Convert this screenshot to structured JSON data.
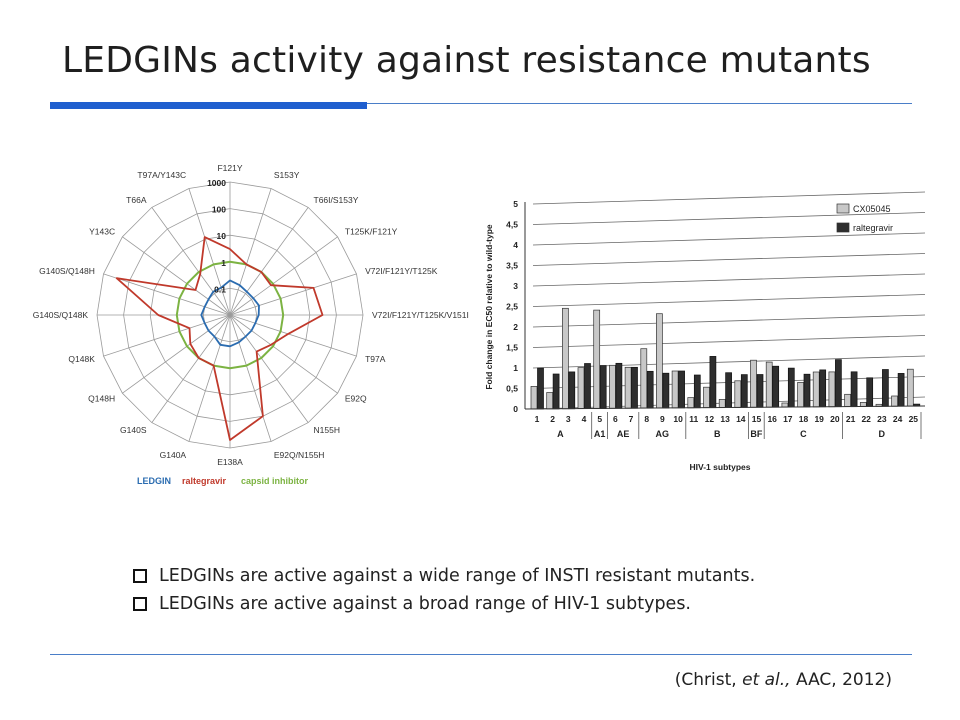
{
  "slide": {
    "title": "LEDGINs activity against resistance mutants",
    "bullets": [
      "LEDGINs are active against a wide range of INSTI resistant mutants.",
      "LEDGINs are active against a broad range of HIV-1 subtypes."
    ],
    "citation_open": "(Christ, ",
    "citation_italic": "et al.,",
    "citation_close": " AAC, 2012)"
  },
  "colors": {
    "accent_line": "#1f5fcf",
    "ledgin": "#2b6cb0",
    "raltegravir": "#c0392b",
    "capsid_inhibitor": "#7cb342",
    "bar_light": "#c8c8c8",
    "bar_dark": "#2e2e2e"
  },
  "chart_data": [
    {
      "type": "radar",
      "scale": "log",
      "rings": [
        "1000",
        "100",
        "10",
        "1",
        "0.1"
      ],
      "ring_values": [
        1000,
        100,
        10,
        1,
        0.1
      ],
      "axes": [
        "F121Y",
        "S153Y",
        "T66I/S153Y",
        "T125K/F121Y",
        "V72I/F121Y/T125K",
        "V72I/F121Y/T125K/V151I",
        "T97A",
        "E92Q",
        "N155H",
        "E92Q/N155H",
        "E138A",
        "G140A",
        "G140S",
        "Q148H",
        "Q148K",
        "G140S/Q148K",
        "G140S/Q148H",
        "Y143C",
        "T66A",
        "T97A/Y143C"
      ],
      "legend": [
        "LEDGIN",
        "raltegravir",
        "capsid inhibitor"
      ],
      "series": [
        {
          "name": "LEDGIN",
          "values": [
            0.2,
            0.15,
            0.12,
            0.12,
            0.14,
            0.12,
            0.1,
            0.1,
            0.1,
            0.12,
            0.15,
            0.15,
            0.1,
            0.1,
            0.1,
            0.12,
            0.1,
            0.1,
            0.12,
            0.12
          ]
        },
        {
          "name": "raltegravir",
          "values": [
            3,
            1,
            1,
            0.8,
            20,
            30,
            2,
            0.8,
            0.5,
            100,
            500,
            1,
            1,
            0.7,
            0.4,
            5,
            300,
            0.4,
            0.8,
            12
          ]
        },
        {
          "name": "capsid inhibitor",
          "values": [
            1,
            1,
            1,
            1,
            1,
            1,
            1,
            1,
            1,
            1,
            1,
            1,
            1,
            1,
            1,
            1,
            1,
            1,
            1,
            1
          ]
        }
      ]
    },
    {
      "type": "bar",
      "ylabel": "Fold change in EC50 relative to wild-type",
      "xlabel": "HIV-1 subtypes",
      "ylim": [
        0,
        5
      ],
      "yticks": [
        "0",
        "0,5",
        "1",
        "1,5",
        "2",
        "2,5",
        "3",
        "3,5",
        "4",
        "4,5",
        "5"
      ],
      "categories": [
        "1",
        "2",
        "3",
        "4",
        "5",
        "6",
        "7",
        "8",
        "9",
        "10",
        "11",
        "12",
        "13",
        "14",
        "15",
        "16",
        "17",
        "18",
        "19",
        "20",
        "21",
        "22",
        "23",
        "24",
        "25"
      ],
      "groups": [
        {
          "label": "A",
          "from": 1,
          "to": 4
        },
        {
          "label": "A1",
          "from": 5,
          "to": 5
        },
        {
          "label": "AE",
          "from": 6,
          "to": 7
        },
        {
          "label": "AG",
          "from": 8,
          "to": 10
        },
        {
          "label": "B",
          "from": 11,
          "to": 14
        },
        {
          "label": "BF",
          "from": 15,
          "to": 15
        },
        {
          "label": "C",
          "from": 16,
          "to": 20
        },
        {
          "label": "D",
          "from": 21,
          "to": 25
        }
      ],
      "legend": [
        "CX05045",
        "raltegravir"
      ],
      "series": [
        {
          "name": "CX05045",
          "values": [
            0.55,
            0.4,
            2.45,
            1.0,
            2.4,
            1.05,
            1.0,
            1.45,
            2.3,
            0.9,
            0.25,
            0.5,
            0.2,
            0.65,
            1.15,
            1.1,
            0.1,
            0.6,
            0.85,
            0.85,
            0.3,
            0.1,
            0.05,
            0.25,
            0.9
          ]
        },
        {
          "name": "raltegravir",
          "values": [
            1.0,
            0.85,
            0.9,
            1.1,
            1.05,
            1.1,
            1.0,
            0.9,
            0.85,
            0.9,
            0.8,
            1.25,
            0.85,
            0.8,
            0.8,
            1.0,
            0.95,
            0.8,
            0.9,
            1.15,
            0.85,
            0.7,
            0.9,
            0.8,
            0.05
          ]
        }
      ]
    }
  ]
}
